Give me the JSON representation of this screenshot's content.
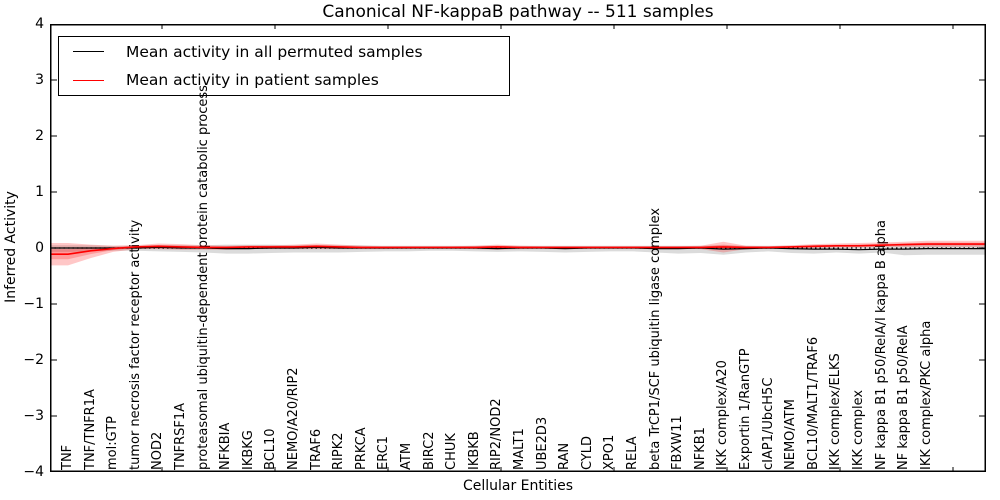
{
  "title": "Canonical NF-kappaB pathway -- 511 samples",
  "legend": {
    "items": [
      {
        "label": "Mean activity in all permuted samples",
        "color": "#000000"
      },
      {
        "label": "Mean activity in patient samples",
        "color": "#ff0000"
      }
    ]
  },
  "axes": {
    "ylabel": "Inferred Activity",
    "xlabel": "Cellular Entities"
  },
  "chart_data": {
    "type": "line",
    "title": "Canonical NF-kappaB pathway -- 511 samples",
    "xlabel": "Cellular Entities",
    "ylabel": "Inferred Activity",
    "ylim": [
      -4,
      4
    ],
    "yticks": [
      4,
      3,
      2,
      1,
      0,
      -1,
      -2,
      -3,
      -4
    ],
    "grid": false,
    "zero_line_style": "dotted",
    "legend_position": "upper left",
    "categories": [
      "TNF",
      "TNF/TNFR1A",
      "mol:GTP",
      "tumor necrosis factor receptor activity",
      "NOD2",
      "TNFRSF1A",
      "proteasomal ubiquitin-dependent protein catabolic process",
      "NFKBIA",
      "IKBKG",
      "BCL10",
      "NEMO/A20/RIP2",
      "TRAF6",
      "RIPK2",
      "PRKCA",
      "ERC1",
      "ATM",
      "BIRC2",
      "CHUK",
      "IKBKB",
      "RIP2/NOD2",
      "MALT1",
      "UBE2D3",
      "RAN",
      "CYLD",
      "XPO1",
      "RELA",
      "beta TrCP1/SCF ubiquitin ligase complex",
      "FBXW11",
      "NFKB1",
      "IKK complex/A20",
      "Exportin 1/RanGTP",
      "cIAP1/UbcH5C",
      "NEMO/ATM",
      "BCL10/MALT1/TRAF6",
      "IKK complex/ELKS",
      "IKK complex",
      "NF kappa B1 p50/RelA/I kappa B alpha",
      "NF kappa B1 p50/RelA",
      "IKK complex/PKC alpha"
    ],
    "series": [
      {
        "name": "Mean activity in all permuted samples",
        "color": "#000000",
        "band_color": "#000000",
        "band_opacity": 0.14,
        "values": [
          0.0,
          0.0,
          0.0,
          0.0,
          0.01,
          0.0,
          0.0,
          -0.01,
          -0.01,
          0.0,
          0.0,
          0.01,
          0.0,
          0.0,
          0.0,
          0.0,
          0.0,
          0.0,
          0.0,
          -0.01,
          0.0,
          0.0,
          -0.01,
          0.0,
          0.0,
          0.0,
          -0.01,
          -0.01,
          0.0,
          -0.02,
          -0.01,
          0.0,
          -0.01,
          -0.02,
          -0.02,
          -0.03,
          -0.02,
          -0.02,
          -0.01
        ],
        "band_upper": [
          0.05,
          0.05,
          0.04,
          0.04,
          0.05,
          0.05,
          0.05,
          0.06,
          0.06,
          0.06,
          0.05,
          0.05,
          0.05,
          0.05,
          0.04,
          0.04,
          0.04,
          0.04,
          0.04,
          0.04,
          0.04,
          0.04,
          0.04,
          0.04,
          0.04,
          0.04,
          0.04,
          0.04,
          0.04,
          0.05,
          0.04,
          0.04,
          0.04,
          0.05,
          0.05,
          0.05,
          0.05,
          0.06,
          0.06
        ],
        "band_lower": [
          -0.07,
          -0.06,
          -0.05,
          -0.05,
          -0.06,
          -0.07,
          -0.08,
          -0.1,
          -0.1,
          -0.09,
          -0.08,
          -0.08,
          -0.08,
          -0.07,
          -0.06,
          -0.06,
          -0.05,
          -0.05,
          -0.06,
          -0.07,
          -0.06,
          -0.07,
          -0.08,
          -0.07,
          -0.06,
          -0.06,
          -0.08,
          -0.1,
          -0.09,
          -0.12,
          -0.08,
          -0.06,
          -0.09,
          -0.1,
          -0.08,
          -0.1,
          -0.08,
          -0.13,
          -0.12
        ]
      },
      {
        "name": "Mean activity in patient samples",
        "color": "#ff0000",
        "band_color": "#ff0000",
        "band_opacity": 0.22,
        "values": [
          -0.11,
          -0.05,
          -0.01,
          0.02,
          0.03,
          0.02,
          0.01,
          0.01,
          0.02,
          0.02,
          0.02,
          0.03,
          0.02,
          0.01,
          0.01,
          0.01,
          0.01,
          0.01,
          0.01,
          0.02,
          0.01,
          0.01,
          0.01,
          0.01,
          0.01,
          0.01,
          0.01,
          0.01,
          0.01,
          0.02,
          0.01,
          0.01,
          0.02,
          0.03,
          0.04,
          0.04,
          0.05,
          0.06,
          0.07
        ],
        "band_upper": [
          0.09,
          0.06,
          0.04,
          0.05,
          0.08,
          0.07,
          0.05,
          0.04,
          0.05,
          0.05,
          0.06,
          0.08,
          0.06,
          0.04,
          0.03,
          0.03,
          0.03,
          0.03,
          0.04,
          0.06,
          0.04,
          0.03,
          0.03,
          0.03,
          0.03,
          0.03,
          0.03,
          0.03,
          0.04,
          0.11,
          0.04,
          0.03,
          0.05,
          0.07,
          0.08,
          0.09,
          0.1,
          0.11,
          0.13
        ],
        "band_lower": [
          -0.31,
          -0.18,
          -0.07,
          -0.02,
          -0.02,
          -0.03,
          -0.03,
          -0.03,
          -0.02,
          -0.02,
          -0.02,
          -0.02,
          -0.02,
          -0.02,
          -0.02,
          -0.01,
          -0.01,
          -0.01,
          -0.02,
          -0.03,
          -0.02,
          -0.01,
          -0.01,
          -0.01,
          -0.01,
          -0.01,
          -0.01,
          -0.01,
          -0.02,
          -0.08,
          -0.02,
          -0.01,
          0.0,
          0.0,
          0.01,
          0.01,
          0.02,
          0.02,
          0.02
        ]
      }
    ]
  }
}
